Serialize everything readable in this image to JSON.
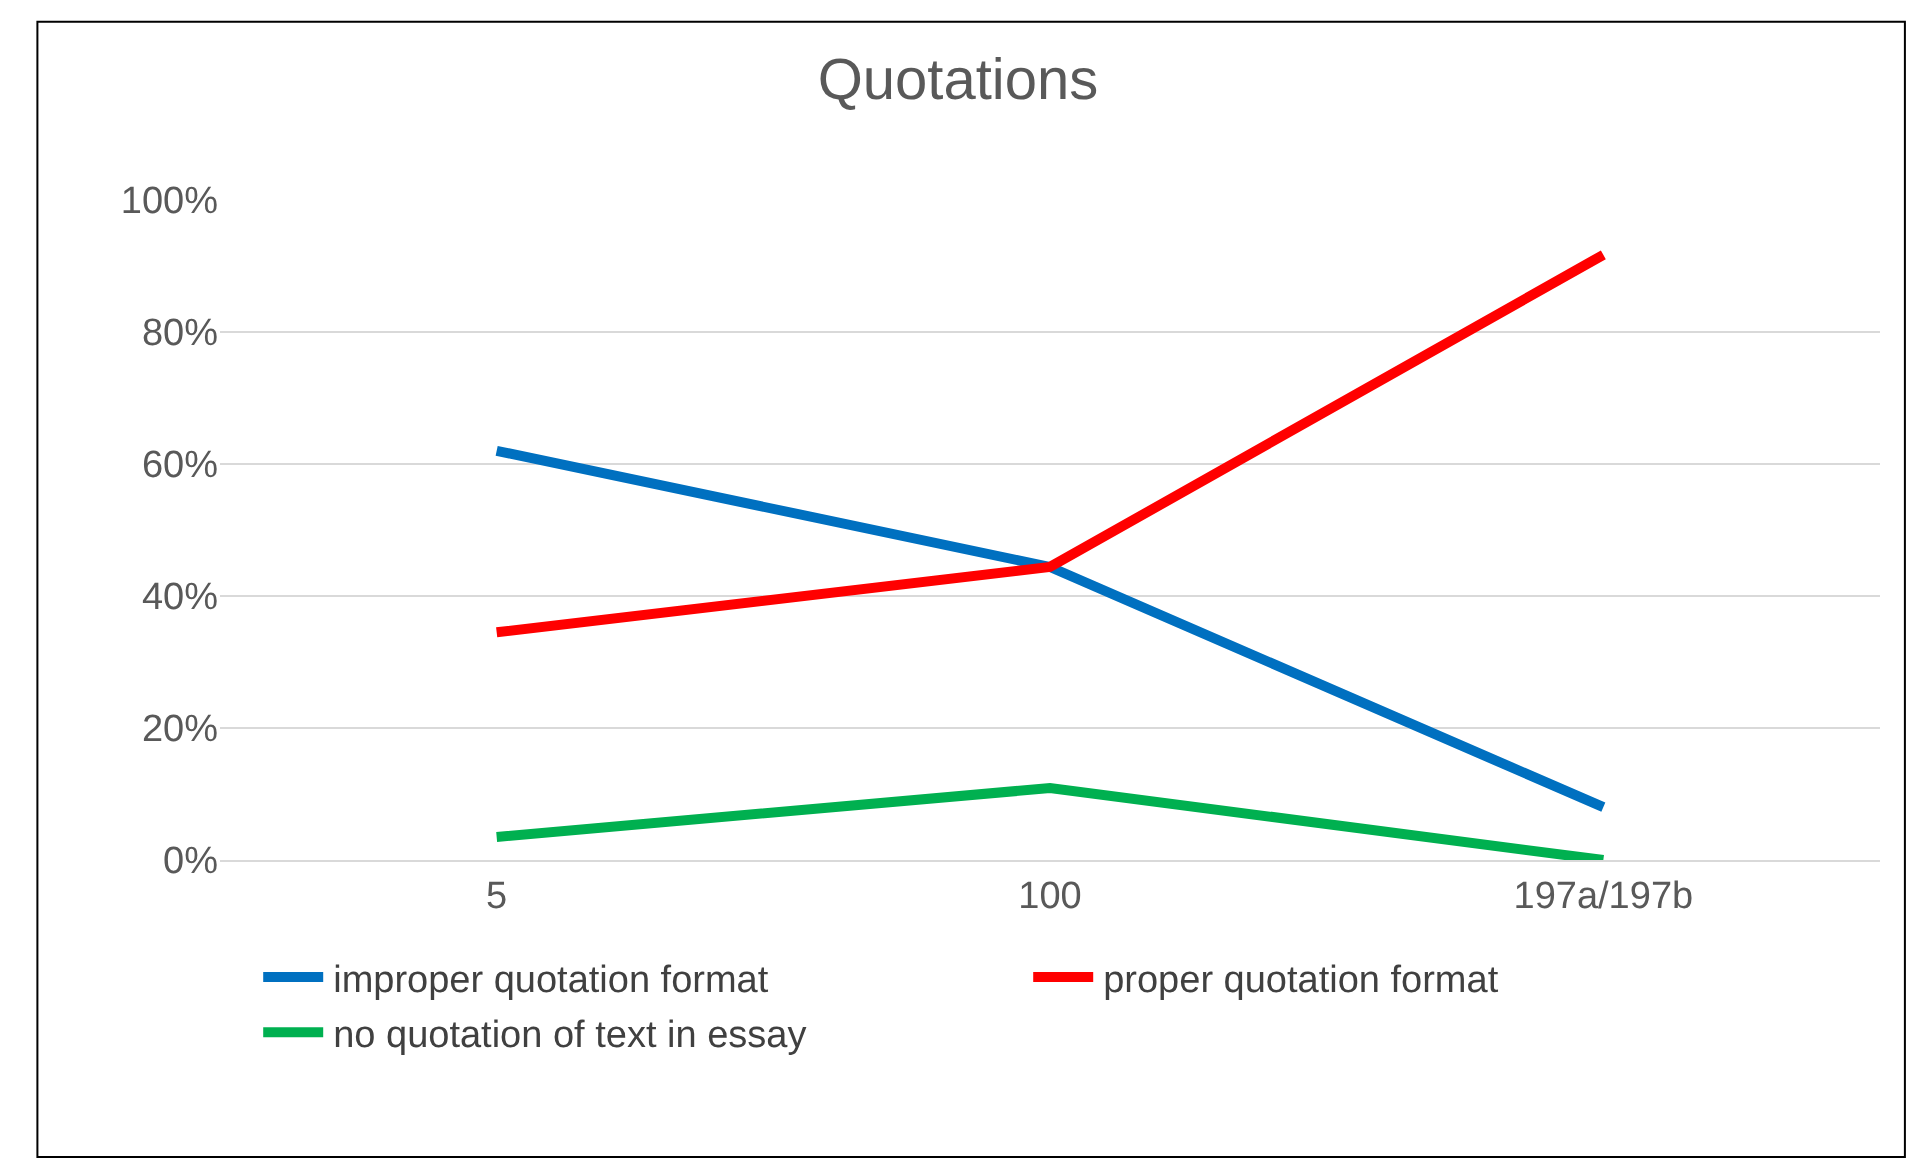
{
  "chart_data": {
    "type": "line",
    "title": "Quotations",
    "categories": [
      "5",
      "100",
      "197a/197b"
    ],
    "series": [
      {
        "name": "improper quotation format",
        "color": "#0070c0",
        "values": [
          62,
          44.4,
          8
        ]
      },
      {
        "name": "proper quotation format",
        "color": "#ff0000",
        "values": [
          34.5,
          44.4,
          91.7
        ]
      },
      {
        "name": "no quotation of text in essay",
        "color": "#00b050",
        "values": [
          3.5,
          10.9,
          0
        ]
      }
    ],
    "ylim": [
      0,
      100
    ],
    "yticks": [
      {
        "value": 0,
        "label": "0%"
      },
      {
        "value": 20,
        "label": "20%"
      },
      {
        "value": 40,
        "label": "40%"
      },
      {
        "value": 60,
        "label": "60%"
      },
      {
        "value": 80,
        "label": "80%"
      },
      {
        "value": 100,
        "label": "100%"
      }
    ],
    "grid": "y",
    "legend": "bottom",
    "marker": "none",
    "line_style": "solid"
  }
}
